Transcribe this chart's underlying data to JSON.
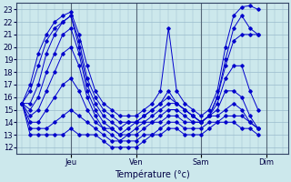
{
  "xlabel": "Température (°c)",
  "ylim": [
    11.5,
    23.5
  ],
  "xlim": [
    -2,
    98
  ],
  "yticks": [
    12,
    13,
    14,
    15,
    16,
    17,
    18,
    19,
    20,
    21,
    22,
    23
  ],
  "xtick_positions": [
    18,
    42,
    66,
    90
  ],
  "xtick_labels": [
    "Jeu",
    "Ven",
    "Sam",
    "Dim"
  ],
  "bg_color": "#cce8ec",
  "line_color": "#0000cc",
  "grid_color": "#99bbcc",
  "fig_bg": "#cce8ec",
  "lines": [
    [
      0,
      15.5,
      3,
      17.0,
      6,
      19.5,
      9,
      21.0,
      12,
      22.0,
      15,
      22.5,
      18,
      22.8,
      21,
      21.0,
      24,
      18.5,
      27,
      16.5,
      30,
      15.5,
      33,
      15.0,
      36,
      14.5,
      39,
      14.5,
      42,
      14.5,
      45,
      15.0,
      48,
      15.5,
      51,
      16.5,
      54,
      21.5,
      57,
      16.5,
      60,
      15.5,
      63,
      15.0,
      66,
      14.5,
      69,
      15.0,
      72,
      16.5,
      75,
      20.0,
      78,
      22.5,
      81,
      23.2,
      84,
      23.3,
      87,
      23.0
    ],
    [
      0,
      15.5,
      3,
      16.5,
      6,
      18.5,
      9,
      20.5,
      12,
      21.5,
      15,
      22.0,
      18,
      22.5,
      21,
      20.5,
      24,
      17.5,
      27,
      16.0,
      30,
      15.0,
      33,
      14.5,
      36,
      14.0,
      39,
      14.0,
      42,
      14.0,
      45,
      14.5,
      48,
      15.0,
      51,
      15.5,
      54,
      16.0,
      57,
      15.5,
      60,
      15.0,
      63,
      14.5,
      66,
      14.0,
      69,
      14.5,
      72,
      16.0,
      75,
      19.0,
      78,
      21.5,
      81,
      22.5,
      84,
      21.5,
      87,
      21.0
    ],
    [
      0,
      15.5,
      3,
      15.5,
      6,
      17.0,
      9,
      19.5,
      12,
      21.0,
      15,
      22.0,
      18,
      22.5,
      21,
      20.0,
      24,
      17.0,
      27,
      15.5,
      30,
      14.5,
      33,
      14.0,
      36,
      13.5,
      39,
      14.0,
      42,
      14.0,
      45,
      14.5,
      48,
      15.0,
      51,
      15.5,
      54,
      16.5,
      57,
      15.5,
      60,
      15.0,
      63,
      14.5,
      66,
      14.0,
      69,
      14.5,
      72,
      16.0,
      75,
      18.5,
      78,
      20.5,
      81,
      21.0,
      84,
      21.0,
      87,
      21.0
    ],
    [
      0,
      15.5,
      3,
      15.0,
      6,
      16.0,
      9,
      18.0,
      12,
      19.5,
      15,
      21.0,
      18,
      21.5,
      21,
      19.5,
      24,
      16.5,
      27,
      15.0,
      30,
      14.0,
      33,
      13.5,
      36,
      13.0,
      39,
      13.5,
      42,
      14.0,
      45,
      14.0,
      48,
      14.5,
      51,
      15.0,
      54,
      15.5,
      57,
      15.5,
      60,
      15.0,
      63,
      14.5,
      66,
      14.0,
      69,
      14.5,
      72,
      15.5,
      75,
      17.5,
      78,
      18.5,
      81,
      18.5,
      84,
      16.5,
      87,
      15.0
    ],
    [
      0,
      15.5,
      3,
      14.5,
      6,
      15.0,
      9,
      16.5,
      12,
      18.0,
      15,
      19.5,
      18,
      20.0,
      21,
      18.5,
      24,
      16.0,
      27,
      14.5,
      30,
      13.5,
      33,
      13.5,
      36,
      13.0,
      39,
      13.0,
      42,
      13.5,
      45,
      14.0,
      48,
      14.0,
      51,
      14.5,
      54,
      15.0,
      57,
      15.0,
      60,
      14.5,
      63,
      14.0,
      66,
      14.0,
      69,
      14.5,
      72,
      15.0,
      75,
      16.5,
      78,
      16.5,
      81,
      16.0,
      84,
      14.5,
      87,
      13.5
    ],
    [
      0,
      15.5,
      3,
      14.0,
      6,
      14.0,
      9,
      15.0,
      12,
      16.0,
      15,
      17.0,
      18,
      17.5,
      21,
      16.5,
      24,
      15.0,
      27,
      14.0,
      30,
      13.5,
      33,
      13.0,
      36,
      12.5,
      39,
      13.0,
      42,
      13.0,
      45,
      13.5,
      48,
      14.0,
      51,
      14.0,
      54,
      14.5,
      57,
      14.5,
      60,
      14.0,
      63,
      14.0,
      66,
      14.0,
      69,
      14.5,
      72,
      14.5,
      75,
      15.0,
      78,
      15.5,
      81,
      15.0,
      84,
      14.0,
      87,
      13.5
    ],
    [
      0,
      15.5,
      3,
      13.5,
      6,
      13.5,
      9,
      13.5,
      12,
      14.0,
      15,
      14.5,
      18,
      15.0,
      21,
      14.5,
      24,
      14.0,
      27,
      13.5,
      30,
      13.0,
      33,
      12.5,
      36,
      12.5,
      39,
      12.5,
      42,
      12.5,
      45,
      13.0,
      48,
      13.0,
      51,
      13.5,
      54,
      14.0,
      57,
      14.0,
      60,
      13.5,
      63,
      13.5,
      66,
      13.5,
      69,
      14.0,
      72,
      14.0,
      75,
      14.5,
      78,
      14.5,
      81,
      14.5,
      84,
      14.0,
      87,
      13.5
    ],
    [
      0,
      15.5,
      3,
      13.0,
      6,
      13.0,
      9,
      13.0,
      12,
      13.0,
      15,
      13.0,
      18,
      13.5,
      21,
      13.0,
      24,
      13.0,
      27,
      13.0,
      30,
      12.5,
      33,
      12.0,
      36,
      12.0,
      39,
      12.0,
      42,
      12.0,
      45,
      12.5,
      48,
      13.0,
      51,
      13.0,
      54,
      13.5,
      57,
      13.5,
      60,
      13.0,
      63,
      13.0,
      66,
      13.0,
      69,
      13.5,
      72,
      14.0,
      75,
      14.0,
      78,
      14.0,
      81,
      13.5,
      84,
      13.5,
      87,
      13.0
    ]
  ],
  "vline_positions": [
    18,
    42,
    66,
    90
  ],
  "vline_color": "#556677"
}
